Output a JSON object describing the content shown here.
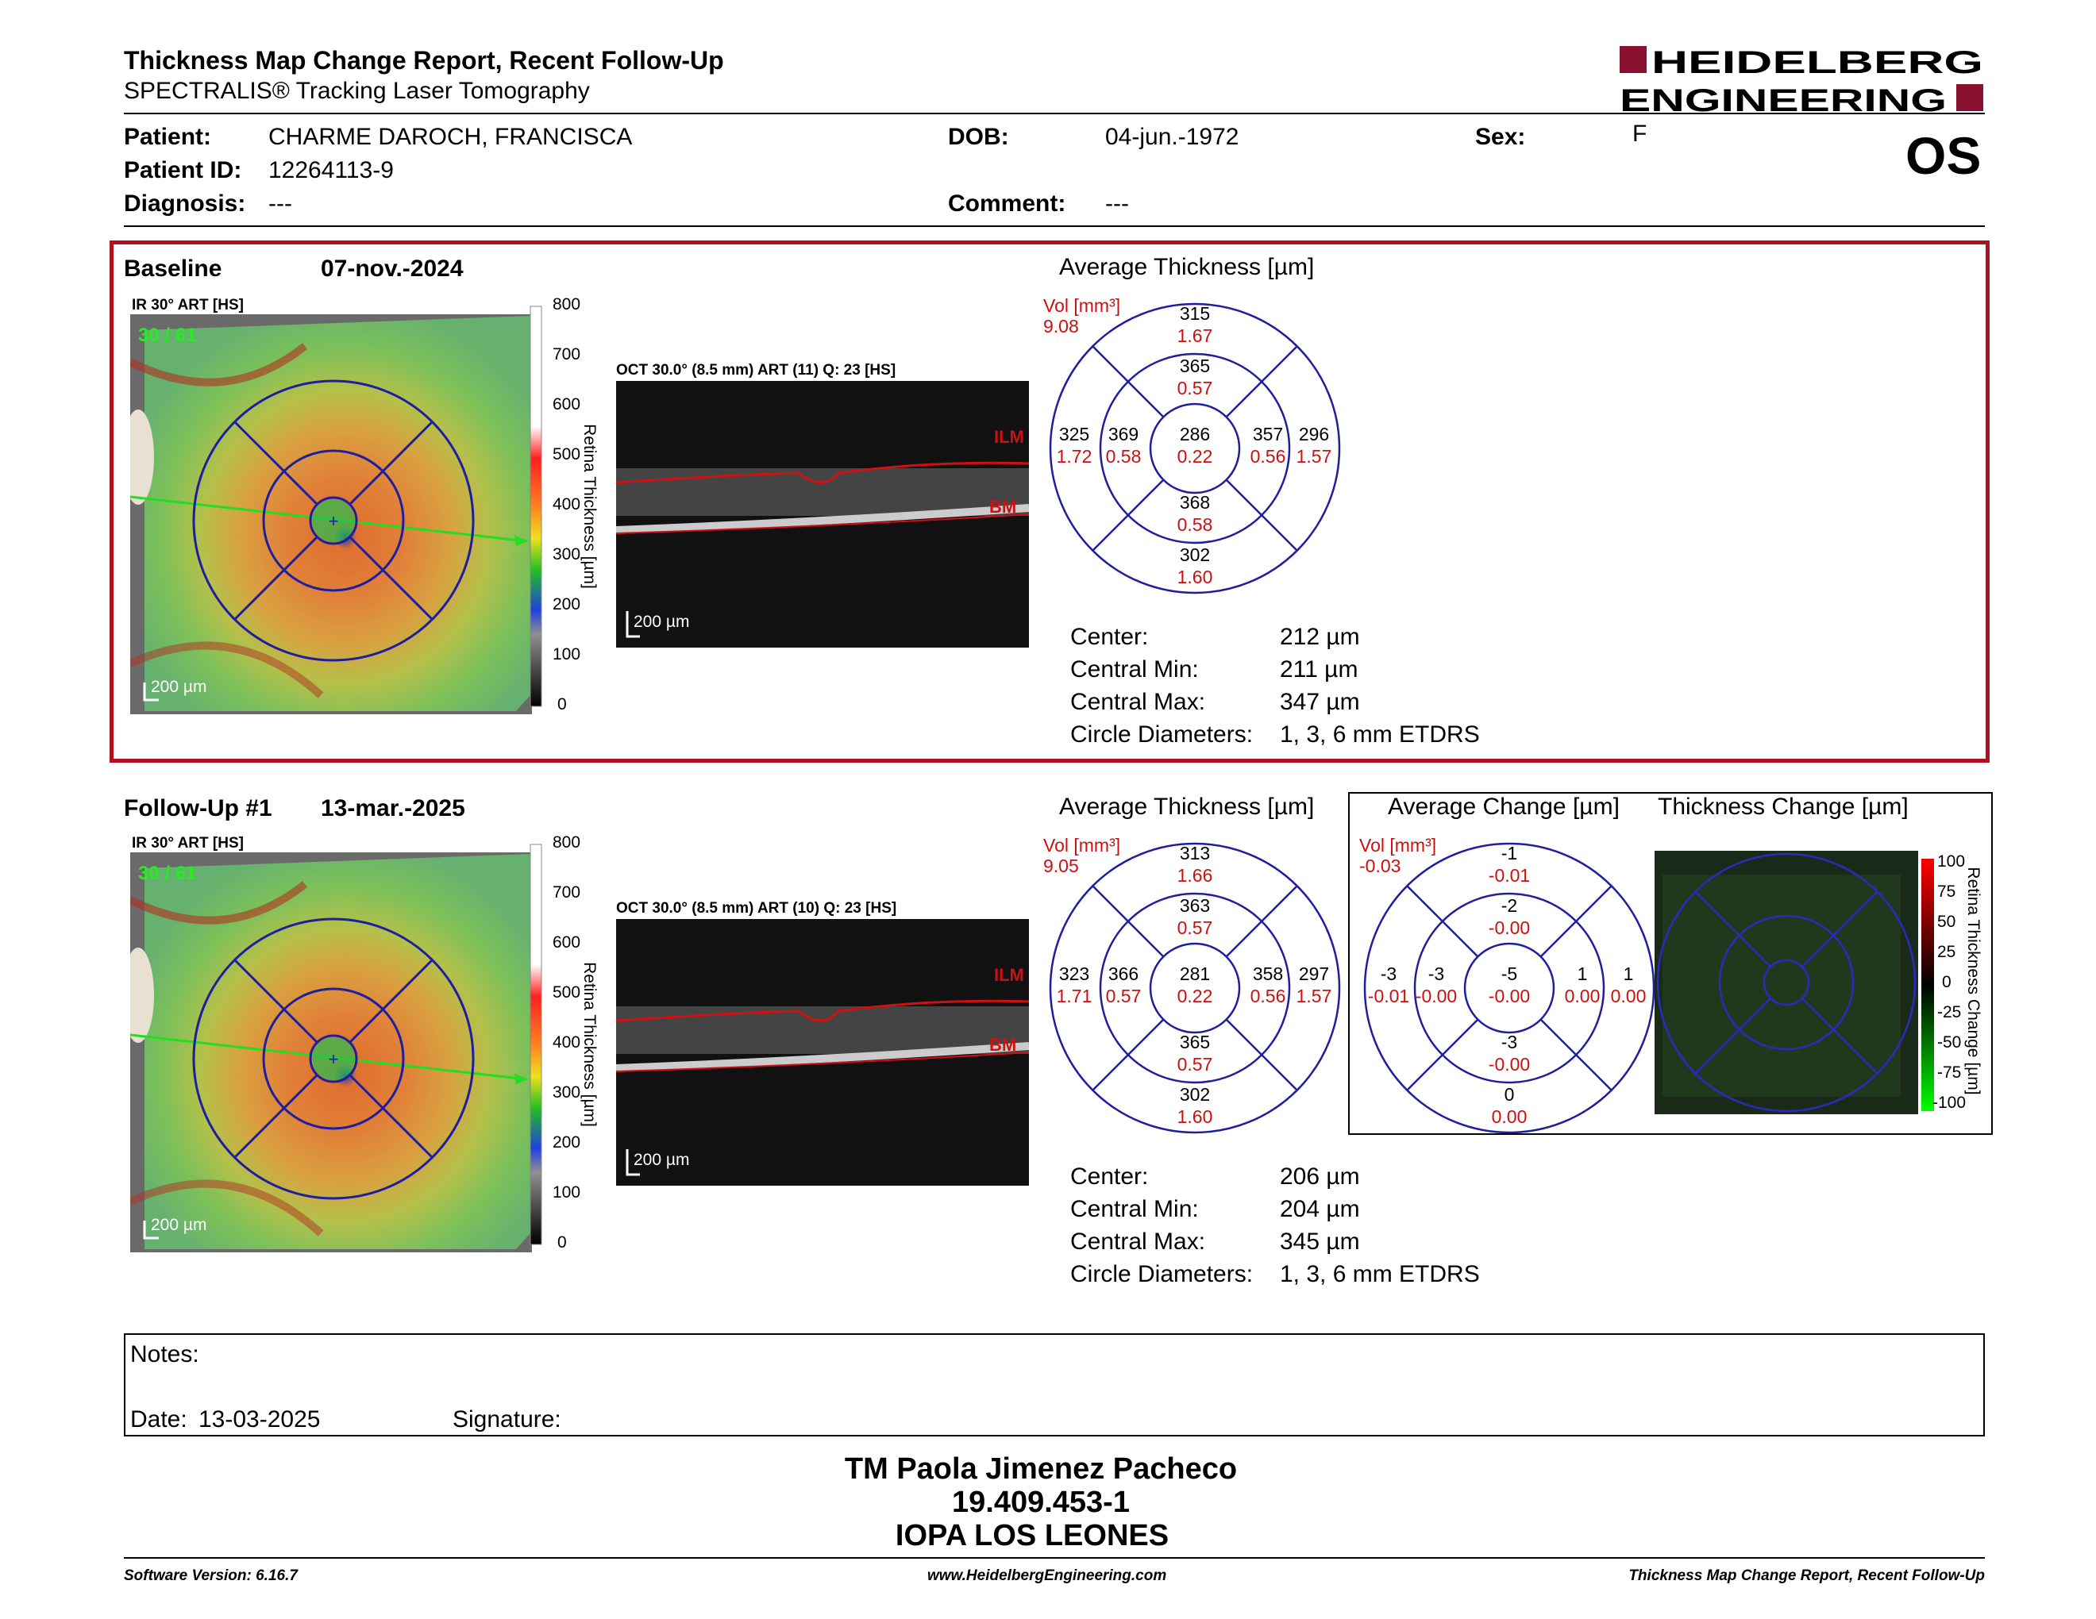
{
  "header": {
    "title": "Thickness Map Change Report, Recent Follow-Up",
    "subtitle": "SPECTRALIS® Tracking Laser Tomography",
    "logo_line1": "HEIDELBERG",
    "logo_line2": "ENGINEERING",
    "eye": "OS"
  },
  "patient": {
    "patient_label": "Patient:",
    "patient_value": "CHARME DAROCH, FRANCISCA",
    "id_label": "Patient ID:",
    "id_value": "12264113-9",
    "diagnosis_label": "Diagnosis:",
    "diagnosis_value": "---",
    "dob_label": "DOB:",
    "dob_value": "04-jun.-1972",
    "comment_label": "Comment:",
    "comment_value": "---",
    "sex_label": "Sex:",
    "sex_value": "F"
  },
  "colors": {
    "frame": "#b01020",
    "etdrs": "#1e1e9e",
    "vol": "#cc1010",
    "scan_line": "#22dd22"
  },
  "baseline": {
    "label": "Baseline",
    "date": "07-nov.-2024",
    "ir_caption": "IR 30° ART [HS]",
    "ir_art": "30 / 61",
    "ir_scale": "200 µm",
    "oct_caption": "OCT 30.0° (8.5 mm) ART (11) Q: 23 [HS]",
    "oct_scale": "200 µm",
    "ilm": "ILM",
    "bm": "BM",
    "colorbar_ticks": [
      "800",
      "700",
      "600",
      "500",
      "400",
      "300",
      "200",
      "100",
      "0"
    ],
    "colorbar_title": "Retina Thickness [µm]",
    "avg_title": "Average Thickness [µm]",
    "vol_label": "Vol [mm³]",
    "vol_value": "9.08",
    "grid": {
      "outer_top": [
        "315",
        "1.67"
      ],
      "inner_top": [
        "365",
        "0.57"
      ],
      "outer_left": [
        "325",
        "1.72"
      ],
      "inner_left": [
        "369",
        "0.58"
      ],
      "center": [
        "286",
        "0.22"
      ],
      "inner_right": [
        "357",
        "0.56"
      ],
      "outer_right": [
        "296",
        "1.57"
      ],
      "inner_bottom": [
        "368",
        "0.58"
      ],
      "outer_bottom": [
        "302",
        "1.60"
      ]
    },
    "stats": [
      {
        "label": "Center:",
        "value": "212 µm"
      },
      {
        "label": "Central Min:",
        "value": "211 µm"
      },
      {
        "label": "Central Max:",
        "value": "347 µm"
      },
      {
        "label": "Circle Diameters:",
        "value": "1, 3, 6 mm ETDRS"
      }
    ]
  },
  "followup": {
    "label": "Follow-Up #1",
    "date": "13-mar.-2025",
    "ir_caption": "IR 30° ART [HS]",
    "ir_art": "30 / 61",
    "ir_scale": "200 µm",
    "oct_caption": "OCT 30.0° (8.5 mm) ART (10) Q: 23 [HS]",
    "oct_scale": "200 µm",
    "ilm": "ILM",
    "bm": "BM",
    "colorbar_ticks": [
      "800",
      "700",
      "600",
      "500",
      "400",
      "300",
      "200",
      "100",
      "0"
    ],
    "colorbar_title": "Retina Thickness [µm]",
    "avg_title": "Average Thickness [µm]",
    "vol_label": "Vol [mm³]",
    "vol_value": "9.05",
    "grid": {
      "outer_top": [
        "313",
        "1.66"
      ],
      "inner_top": [
        "363",
        "0.57"
      ],
      "outer_left": [
        "323",
        "1.71"
      ],
      "inner_left": [
        "366",
        "0.57"
      ],
      "center": [
        "281",
        "0.22"
      ],
      "inner_right": [
        "358",
        "0.56"
      ],
      "outer_right": [
        "297",
        "1.57"
      ],
      "inner_bottom": [
        "365",
        "0.57"
      ],
      "outer_bottom": [
        "302",
        "1.60"
      ]
    },
    "change_title": "Average Change [µm]",
    "change_vol_label": "Vol [mm³]",
    "change_vol_value": "-0.03",
    "change_grid": {
      "outer_top": [
        "-1",
        "-0.01"
      ],
      "inner_top": [
        "-2",
        "-0.00"
      ],
      "outer_left": [
        "-3",
        "-0.01"
      ],
      "inner_left": [
        "-3",
        "-0.00"
      ],
      "center": [
        "-5",
        "-0.00"
      ],
      "inner_right": [
        "1",
        "0.00"
      ],
      "outer_right": [
        "1",
        "0.00"
      ],
      "inner_bottom": [
        "-3",
        "-0.00"
      ],
      "outer_bottom": [
        "0",
        "0.00"
      ]
    },
    "thick_change_title": "Thickness Change [µm]",
    "change_bar_ticks": [
      "100",
      "75",
      "50",
      "25",
      "0",
      "-25",
      "-50",
      "-75",
      "-100"
    ],
    "change_bar_title": "Retina Thickness Change [µm]",
    "stats": [
      {
        "label": "Center:",
        "value": "206 µm"
      },
      {
        "label": "Central Min:",
        "value": "204 µm"
      },
      {
        "label": "Central Max:",
        "value": "345 µm"
      },
      {
        "label": "Circle Diameters:",
        "value": "1, 3, 6 mm ETDRS"
      }
    ]
  },
  "notes": {
    "label": "Notes:",
    "date_label": "Date:",
    "date_value": "13-03-2025",
    "signature_label": "Signature:"
  },
  "signer": {
    "name": "TM Paola Jimenez Pacheco",
    "id": "19.409.453-1",
    "org": "IOPA LOS LEONES"
  },
  "footer": {
    "left": "Software Version: 6.16.7",
    "center": "www.HeidelbergEngineering.com",
    "right": "Thickness Map Change Report, Recent Follow-Up"
  }
}
